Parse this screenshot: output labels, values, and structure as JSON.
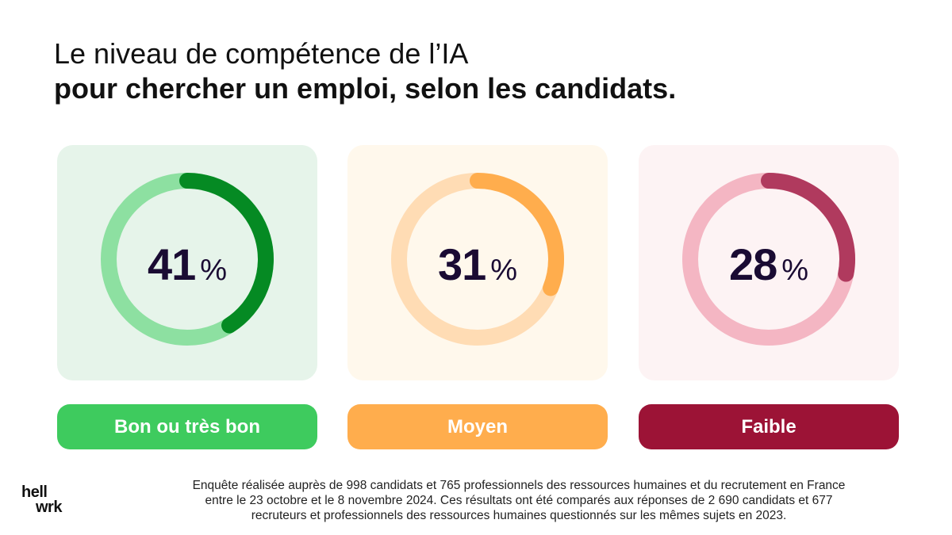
{
  "title": {
    "line1": "Le niveau de compétence de l’IA",
    "line2": "pour chercher un emploi, selon les candidats."
  },
  "chart_data": {
    "type": "pie",
    "unit": "%",
    "categories": [
      "Bon ou très bon",
      "Moyen",
      "Faible"
    ],
    "values": [
      41,
      31,
      28
    ],
    "items": [
      {
        "label": "Bon ou très bon",
        "value": 41,
        "value_text": "41",
        "unit": "%",
        "card_bg": "#e6f4ea",
        "track": "#8de0a1",
        "arc": "#058a23",
        "pill": "#3ecb5e"
      },
      {
        "label": "Moyen",
        "value": 31,
        "value_text": "31",
        "unit": "%",
        "card_bg": "#fff8ec",
        "track": "#ffdcb4",
        "arc": "#ffad4d",
        "pill": "#ffad4d"
      },
      {
        "label": "Faible",
        "value": 28,
        "value_text": "28",
        "unit": "%",
        "card_bg": "#fdf3f4",
        "track": "#f4b6c3",
        "arc": "#b03a5e",
        "pill": "#9c1336"
      }
    ]
  },
  "footnote": {
    "line1": "Enquête réalisée auprès de 998 candidats et 765 professionnels des ressources humaines et du recrutement en France",
    "line2": "entre le 23 octobre et le 8 novembre 2024. Ces résultats ont été comparés aux réponses de 2 690 candidats et 677",
    "line3": "recruteurs et professionnels des ressources humaines questionnés sur les mêmes sujets en 2023."
  },
  "logo": {
    "line1": "hell",
    "line2": "wrk"
  }
}
